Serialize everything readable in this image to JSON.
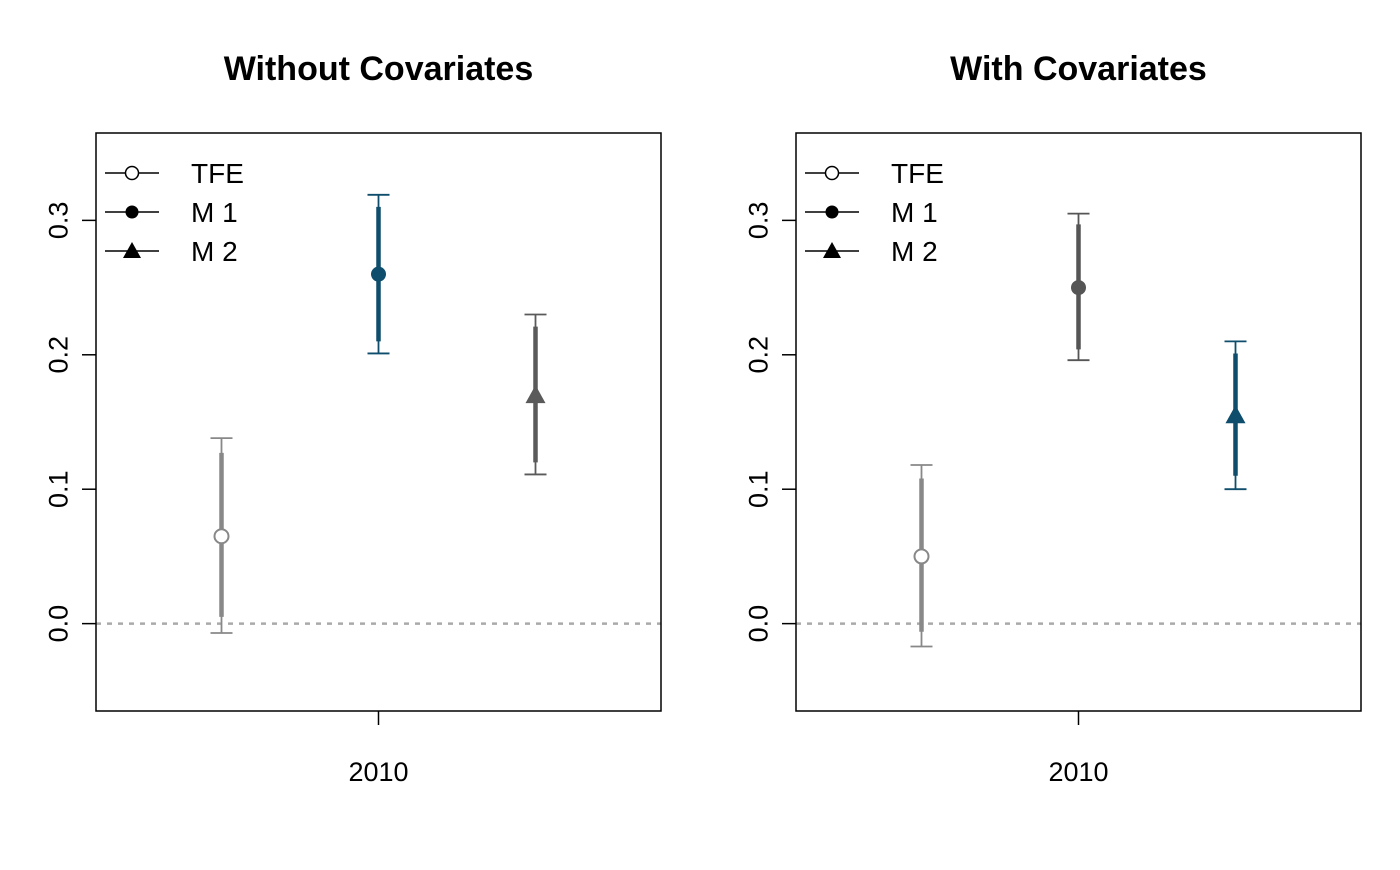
{
  "chart_data": [
    {
      "type": "scatter",
      "title": "Without Covariates",
      "categories": [
        "2010"
      ],
      "ylim": [
        -0.065,
        0.365
      ],
      "yticks": [
        "0.0",
        "0.1",
        "0.2",
        "0.3"
      ],
      "reference_line": 0.0,
      "legend": {
        "placement": "top-left",
        "entries": [
          "TFE",
          "M 1",
          "M 2"
        ]
      },
      "series": [
        {
          "name": "TFE",
          "marker": "open-circle",
          "color": "#888888",
          "estimate": 0.065,
          "ci_inner": [
            0.005,
            0.127
          ],
          "ci_outer": [
            -0.007,
            0.138
          ]
        },
        {
          "name": "M 1",
          "marker": "filled-circle",
          "color": "#0e4d6c",
          "estimate": 0.26,
          "ci_inner": [
            0.21,
            0.31
          ],
          "ci_outer": [
            0.201,
            0.319
          ]
        },
        {
          "name": "M 2",
          "marker": "filled-triangle",
          "color": "#5a5a5a",
          "estimate": 0.17,
          "ci_inner": [
            0.12,
            0.221
          ],
          "ci_outer": [
            0.111,
            0.23
          ]
        }
      ]
    },
    {
      "type": "scatter",
      "title": "With Covariates",
      "categories": [
        "2010"
      ],
      "ylim": [
        -0.065,
        0.365
      ],
      "yticks": [
        "0.0",
        "0.1",
        "0.2",
        "0.3"
      ],
      "reference_line": 0.0,
      "legend": {
        "placement": "top-left",
        "entries": [
          "TFE",
          "M 1",
          "M 2"
        ]
      },
      "series": [
        {
          "name": "TFE",
          "marker": "open-circle",
          "color": "#888888",
          "estimate": 0.05,
          "ci_inner": [
            -0.006,
            0.108
          ],
          "ci_outer": [
            -0.017,
            0.118
          ]
        },
        {
          "name": "M 1",
          "marker": "filled-circle",
          "color": "#555555",
          "estimate": 0.25,
          "ci_inner": [
            0.204,
            0.297
          ],
          "ci_outer": [
            0.196,
            0.305
          ]
        },
        {
          "name": "M 2",
          "marker": "filled-triangle",
          "color": "#0e4d6c",
          "estimate": 0.155,
          "ci_inner": [
            0.11,
            0.201
          ],
          "ci_outer": [
            0.1,
            0.21
          ]
        }
      ]
    }
  ]
}
